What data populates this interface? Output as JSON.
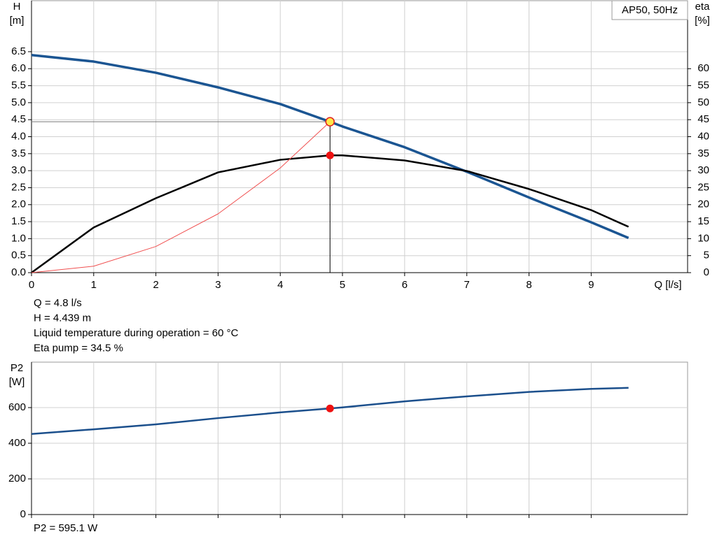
{
  "chart_data": [
    {
      "type": "line",
      "title": "AP50, 50Hz",
      "ylabel": [
        "H",
        "[m]"
      ],
      "y2label": [
        "eta",
        "[%]"
      ],
      "xlabel": "Q [l/s]",
      "x": [
        0,
        1,
        2,
        3,
        4,
        4.8,
        5,
        6,
        7,
        8,
        9,
        9.6
      ],
      "series": [
        {
          "color": "#1b5592",
          "width": 3.5,
          "axis": "y",
          "values": [
            6.4,
            6.21,
            5.88,
            5.45,
            4.96,
            4.439,
            4.3,
            3.69,
            2.97,
            2.21,
            1.48,
            1.02
          ]
        },
        {
          "color": "#000000",
          "width": 2.5,
          "axis": "y2",
          "values": [
            0,
            13.3,
            21.9,
            29.5,
            33.2,
            34.5,
            34.5,
            33,
            29.9,
            24.6,
            18.4,
            13.5
          ]
        },
        {
          "color": "#f05050",
          "width": 1,
          "axis": "y",
          "values": [
            0,
            0.19,
            0.77,
            1.73,
            3.08,
            4.439,
            null,
            null,
            null,
            null,
            null,
            null
          ]
        }
      ],
      "operating_point": {
        "x": 4.8,
        "y": 4.439,
        "y2": 34.5
      },
      "xlim": [
        0,
        10.55
      ],
      "xticks": [
        0,
        1,
        2,
        3,
        4,
        5,
        6,
        7,
        8,
        9
      ],
      "xtick_labels": true,
      "ylim": [
        0,
        8
      ],
      "yticks": [
        {
          "value": 0,
          "label": "0.0"
        },
        0.5,
        {
          "value": 1,
          "label": "1.0"
        },
        1.5,
        {
          "value": 2,
          "label": "2.0"
        },
        2.5,
        {
          "value": 3,
          "label": "3.0"
        },
        3.5,
        {
          "value": 4,
          "label": "4.0"
        },
        4.5,
        {
          "value": 5,
          "label": "5.0"
        },
        5.5,
        {
          "value": 6,
          "label": "6.0"
        },
        6.5
      ],
      "y2lim": [
        0,
        80
      ],
      "y2ticks": [
        0,
        5,
        10,
        15,
        20,
        25,
        30,
        35,
        40,
        45,
        50,
        55,
        60
      ],
      "grid": true,
      "annotations": [
        "Q = 4.8 l/s",
        "H = 4.439 m",
        "Liquid temperature during operation = 60 °C",
        "Eta pump = 34.5 %"
      ]
    },
    {
      "type": "line",
      "ylabel": [
        "P2",
        "[W]"
      ],
      "x": [
        0,
        1,
        2,
        3,
        4,
        4.8,
        5,
        6,
        7,
        8,
        9,
        9.6
      ],
      "series": [
        {
          "color": "#1b4f8c",
          "width": 2.5,
          "axis": "y",
          "values": [
            452,
            478,
            506,
            541,
            573,
            595.1,
            601,
            635,
            663,
            688,
            705,
            711
          ]
        }
      ],
      "operating_point": {
        "x": 4.8,
        "y": 595.1
      },
      "xlim": [
        0,
        10.55
      ],
      "xticks": [
        0,
        1,
        2,
        3,
        4,
        5,
        6,
        7,
        8,
        9
      ],
      "xtick_labels": false,
      "ylim": [
        0,
        855
      ],
      "yticks": [
        0,
        200,
        400,
        600
      ],
      "grid": true,
      "annotations": [
        "P2 = 595.1 W"
      ]
    }
  ]
}
